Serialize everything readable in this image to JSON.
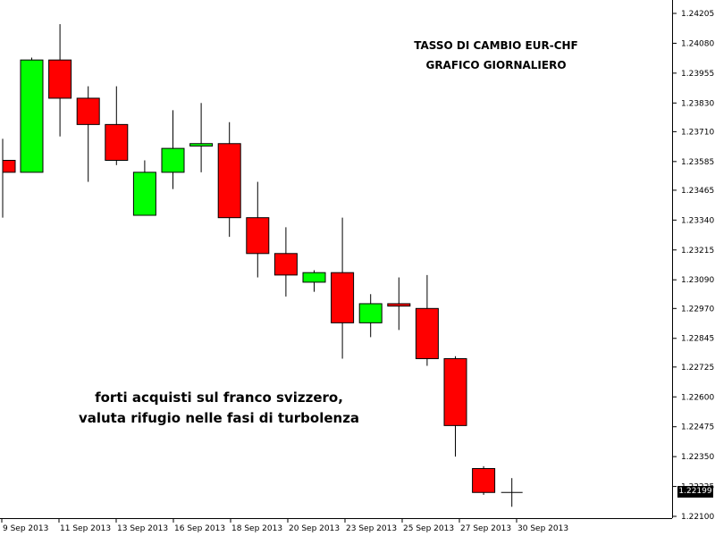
{
  "chart_data": {
    "type": "candlestick",
    "title_line1": "TASSO DI CAMBIO EUR-CHF",
    "title_line2": "GRAFICO GIORNALIERO",
    "annotation_line1": "forti acquisti sul franco svizzero,",
    "annotation_line2": "valuta rifugio nelle fasi di turbolenza",
    "current_price": "1.22199",
    "ylim": [
      1.2209,
      1.2425
    ],
    "y_ticks": [
      "1.24205",
      "1.24080",
      "1.23955",
      "1.23830",
      "1.23710",
      "1.23585",
      "1.23465",
      "1.23340",
      "1.23215",
      "1.23090",
      "1.22970",
      "1.22845",
      "1.22725",
      "1.22600",
      "1.22475",
      "1.22350",
      "1.22225",
      "1.22100"
    ],
    "x_labels": [
      "9 Sep 2013",
      "11 Sep 2013",
      "13 Sep 2013",
      "16 Sep 2013",
      "18 Sep 2013",
      "20 Sep 2013",
      "23 Sep 2013",
      "25 Sep 2013",
      "27 Sep 2013",
      "30 Sep 2013"
    ],
    "candles": [
      {
        "open": 1.2359,
        "high": 1.2368,
        "low": 1.2335,
        "close": 1.2354
      },
      {
        "open": 1.2354,
        "high": 1.2402,
        "low": 1.2354,
        "close": 1.2401
      },
      {
        "open": 1.2401,
        "high": 1.2416,
        "low": 1.2369,
        "close": 1.2385
      },
      {
        "open": 1.2385,
        "high": 1.239,
        "low": 1.235,
        "close": 1.2374
      },
      {
        "open": 1.2374,
        "high": 1.239,
        "low": 1.2357,
        "close": 1.2359
      },
      {
        "open": 1.2336,
        "high": 1.2359,
        "low": 1.2336,
        "close": 1.2354
      },
      {
        "open": 1.2354,
        "high": 1.238,
        "low": 1.2347,
        "close": 1.2364
      },
      {
        "open": 1.2365,
        "high": 1.2383,
        "low": 1.2354,
        "close": 1.2366
      },
      {
        "open": 1.2366,
        "high": 1.2375,
        "low": 1.2327,
        "close": 1.2335
      },
      {
        "open": 1.2335,
        "high": 1.235,
        "low": 1.231,
        "close": 1.232
      },
      {
        "open": 1.232,
        "high": 1.2331,
        "low": 1.2302,
        "close": 1.2311
      },
      {
        "open": 1.2308,
        "high": 1.2313,
        "low": 1.2304,
        "close": 1.2312
      },
      {
        "open": 1.2312,
        "high": 1.2335,
        "low": 1.2276,
        "close": 1.2291
      },
      {
        "open": 1.2291,
        "high": 1.2303,
        "low": 1.2285,
        "close": 1.2299
      },
      {
        "open": 1.2299,
        "high": 1.231,
        "low": 1.2288,
        "close": 1.2298
      },
      {
        "open": 1.2297,
        "high": 1.2311,
        "low": 1.2273,
        "close": 1.2276
      },
      {
        "open": 1.2276,
        "high": 1.2277,
        "low": 1.2235,
        "close": 1.2248
      },
      {
        "open": 1.223,
        "high": 1.2231,
        "low": 1.2219,
        "close": 1.222
      },
      {
        "open": 1.222,
        "high": 1.2226,
        "low": 1.2214,
        "close": 1.22199
      }
    ],
    "colors": {
      "up": "#00ff00",
      "down": "#ff0000",
      "wick": "#000000",
      "axis": "#000000"
    }
  }
}
